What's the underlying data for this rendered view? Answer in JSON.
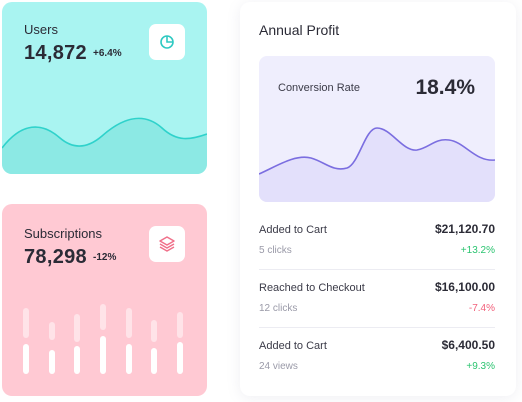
{
  "users_card": {
    "label": "Users",
    "value": "14,872",
    "change": "+6.4%",
    "icon": "pie-chart-icon",
    "bg_color": "#a9f4f1",
    "wave_color": "#2fd2cb"
  },
  "subscriptions_card": {
    "label": "Subscriptions",
    "value": "78,298",
    "change": "-12%",
    "icon": "layers-icon",
    "bg_color": "#ffc9d3",
    "bar_color": "#ffffff"
  },
  "profit_panel": {
    "title": "Annual Profit",
    "conversion": {
      "label": "Conversion Rate",
      "value": "18.4%",
      "line_color": "#7b6ee0",
      "fill_color": "#e3e0fb"
    },
    "rows": [
      {
        "name": "Added to Cart",
        "sub": "5 clicks",
        "amount": "$21,120.70",
        "change": "+13.2%",
        "change_color": "#2bc470"
      },
      {
        "name": "Reached to Checkout",
        "sub": "12 clicks",
        "amount": "$16,100.00",
        "change": "-7.4%",
        "change_color": "#f2607b"
      },
      {
        "name": "Added to Cart",
        "sub": "24 views",
        "amount": "$6,400.50",
        "change": "+9.3%",
        "change_color": "#2bc470"
      }
    ]
  }
}
